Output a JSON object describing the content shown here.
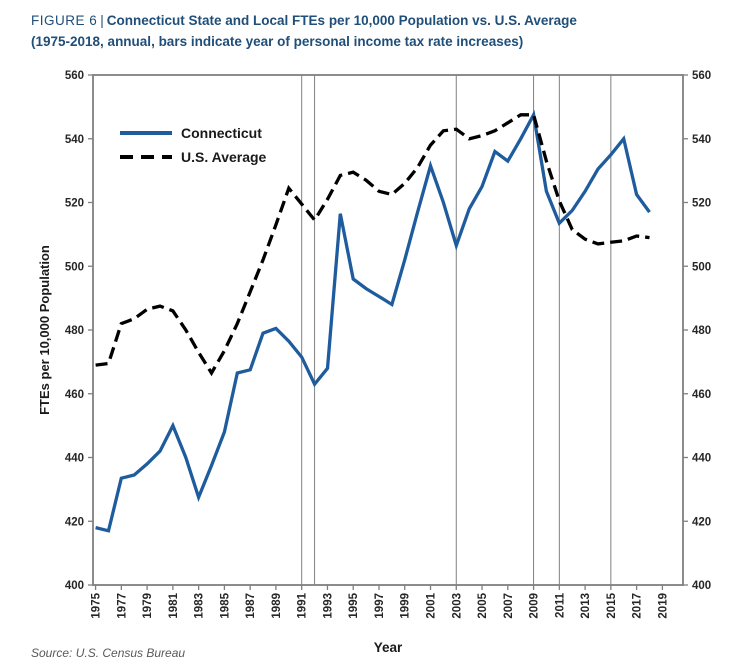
{
  "figure": {
    "label": "FIGURE 6",
    "separator": "|",
    "title": "Connecticut State and Local FTEs per 10,000 Population vs. U.S. Average",
    "subtitle": "(1975-2018, annual, bars indicate year of personal income tax rate increases)"
  },
  "source": "Source: U.S. Census Bureau",
  "colors": {
    "title_blue": "#1F4E79",
    "connecticut_line": "#1F5C9E",
    "us_average_line": "#000000",
    "axis_gray": "#7f7f7f",
    "tick_label": "#262626",
    "event_line": "#808080"
  },
  "chart_data": {
    "type": "line",
    "title": "",
    "xlabel": "Year",
    "ylabel": "FTEs per 10,000 Population",
    "ylim": [
      400,
      560
    ],
    "ytick_step": 20,
    "grid": false,
    "legend_position": "top-left-inside",
    "xticks": [
      1975,
      1977,
      1979,
      1981,
      1983,
      1985,
      1987,
      1989,
      1991,
      1993,
      1995,
      1997,
      1999,
      2001,
      2003,
      2005,
      2007,
      2009,
      2011,
      2013,
      2015,
      2017,
      2019
    ],
    "event_line_years": [
      1991,
      1992,
      2003,
      2009,
      2011,
      2015
    ],
    "x": [
      1975,
      1976,
      1977,
      1978,
      1979,
      1980,
      1981,
      1982,
      1983,
      1984,
      1985,
      1986,
      1987,
      1988,
      1989,
      1990,
      1991,
      1992,
      1993,
      1994,
      1995,
      1996,
      1997,
      1998,
      1999,
      2000,
      2001,
      2002,
      2003,
      2004,
      2005,
      2006,
      2007,
      2008,
      2009,
      2010,
      2011,
      2012,
      2013,
      2014,
      2015,
      2016,
      2017,
      2018
    ],
    "series": [
      {
        "name": "Connecticut",
        "style": "solid",
        "color": "#1F5C9E",
        "values": [
          418,
          417,
          433.5,
          434.5,
          438,
          442,
          450,
          440,
          427.5,
          437.5,
          448,
          466.5,
          467.5,
          479,
          480.5,
          476.5,
          471.5,
          463,
          468,
          516.5,
          496,
          493,
          490.5,
          488,
          502,
          517,
          531.5,
          520,
          506.5,
          518,
          525,
          536,
          533,
          540,
          547.5,
          523.5,
          513.5,
          517.5,
          523.5,
          530.5,
          535,
          540,
          522.5,
          517
        ]
      },
      {
        "name": "U.S. Average",
        "style": "dashed",
        "color": "#000000",
        "values": [
          469,
          469.5,
          482,
          483.5,
          486.5,
          487.5,
          486,
          480,
          473,
          466.5,
          473.5,
          482,
          492,
          502,
          513,
          524.5,
          519.5,
          514.5,
          521,
          528.5,
          529.5,
          527,
          523.5,
          522.5,
          526,
          531,
          538,
          542.5,
          543,
          540,
          541,
          542.5,
          545,
          547.5,
          547.5,
          533,
          520.5,
          511.5,
          508.5,
          507,
          507.5,
          508,
          509.5,
          509
        ]
      }
    ]
  }
}
